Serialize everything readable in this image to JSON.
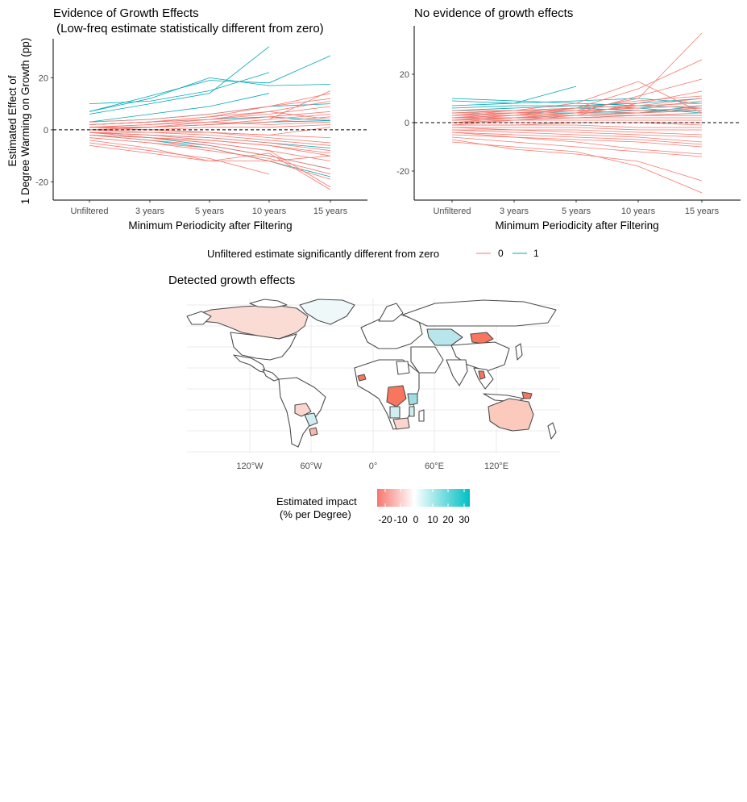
{
  "chart_data": [
    {
      "type": "line",
      "title": "Evidence of Growth Effects",
      "subtitle": " (Low-freq estimate statistically different from zero)",
      "ylabel_line1": "Estimated Effect of",
      "ylabel_line2": "1 Degree Warming on Growth (pp)",
      "xlabel": "Minimum Periodicity after Filtering",
      "categories": [
        "Unfiltered",
        "3 years",
        "5 years",
        "10 years",
        "15 years"
      ],
      "yticks": [
        -20,
        0,
        20
      ],
      "ylim": [
        -27,
        35
      ],
      "reference_line": 0,
      "series_groups": [
        {
          "name": "1",
          "color": "#00a9b5",
          "lines": [
            [
              7,
              12,
              20,
              17,
              17.5
            ],
            [
              10,
              11,
              15,
              22,
              null
            ],
            [
              6,
              10,
              14,
              32,
              null
            ],
            [
              7,
              13,
              19,
              18,
              28.5
            ],
            [
              3,
              6,
              9,
              14,
              null
            ],
            [
              3,
              4,
              6,
              9,
              10
            ],
            [
              2,
              3,
              4,
              5,
              3.5
            ],
            [
              1,
              1,
              2,
              3,
              3.5
            ],
            [
              -1,
              -3,
              -6,
              -10,
              -15
            ],
            [
              -2,
              -4,
              -7,
              -12,
              -18
            ],
            [
              -1,
              -2,
              -3,
              -5,
              -7
            ]
          ]
        },
        {
          "name": "0",
          "color": "#f8766d",
          "lines": [
            [
              3,
              4,
              6,
              9,
              14
            ],
            [
              2,
              3,
              5,
              9,
              12
            ],
            [
              2,
              3,
              4,
              7,
              11
            ],
            [
              1,
              2,
              4,
              6,
              9
            ],
            [
              1,
              2,
              3,
              5,
              7
            ],
            [
              1,
              1,
              2,
              4,
              6
            ],
            [
              2,
              3,
              5,
              7,
              4
            ],
            [
              0,
              1,
              2,
              3,
              5
            ],
            [
              0,
              1,
              2,
              4,
              15
            ],
            [
              1,
              1,
              3,
              2,
              3
            ],
            [
              0,
              0,
              1,
              1,
              2
            ],
            [
              0,
              0,
              -1,
              -2,
              1
            ],
            [
              -1,
              -1,
              -2,
              -4,
              -6
            ],
            [
              -1,
              -2,
              -3,
              -5,
              -8
            ],
            [
              -1,
              -2,
              -4,
              -6,
              -10
            ],
            [
              -2,
              -3,
              -5,
              -8,
              -12
            ],
            [
              -2,
              -4,
              -6,
              -10,
              -15
            ],
            [
              -3,
              -5,
              -8,
              -11,
              -17
            ],
            [
              -3,
              -5,
              -7,
              -12,
              -19
            ],
            [
              -4,
              -7,
              -12,
              -12,
              -10
            ],
            [
              -5,
              -8,
              -11,
              -17,
              null
            ],
            [
              -6,
              -9,
              -12,
              -9,
              -23
            ],
            [
              -1,
              -3,
              -5,
              -8,
              -22
            ],
            [
              0,
              -1,
              -1,
              -2,
              -3
            ],
            [
              1,
              0,
              -1,
              -3,
              -5
            ],
            [
              -2,
              -3,
              -4,
              -6,
              -9
            ]
          ]
        }
      ]
    },
    {
      "type": "line",
      "title": "No evidence of growth effects",
      "xlabel": "Minimum Periodicity after Filtering",
      "categories": [
        "Unfiltered",
        "3 years",
        "5 years",
        "10 years",
        "15 years"
      ],
      "yticks": [
        -20,
        0,
        20
      ],
      "ylim": [
        -32,
        40
      ],
      "reference_line": 0,
      "series_groups": [
        {
          "name": "1",
          "color": "#00a9b5",
          "lines": [
            [
              10,
              9,
              8,
              7,
              6
            ],
            [
              9,
              8,
              9,
              10,
              8
            ],
            [
              7,
              8,
              15,
              null,
              null
            ],
            [
              6,
              7,
              7,
              8,
              10
            ],
            [
              5,
              6,
              7,
              6,
              4
            ],
            [
              4,
              5,
              6,
              5,
              5
            ],
            [
              3,
              4,
              4,
              4,
              7
            ],
            [
              2,
              2,
              3,
              4,
              5
            ],
            [
              1,
              2,
              2,
              3,
              3
            ]
          ]
        },
        {
          "name": "0",
          "color": "#f8766d",
          "lines": [
            [
              5,
              5,
              6,
              7,
              8
            ],
            [
              4,
              4,
              5,
              6,
              7
            ],
            [
              4,
              5,
              5,
              4,
              6
            ],
            [
              3,
              4,
              5,
              6,
              9
            ],
            [
              3,
              3,
              4,
              5,
              6
            ],
            [
              2,
              3,
              3,
              4,
              5
            ],
            [
              2,
              2,
              3,
              3,
              4
            ],
            [
              1,
              2,
              2,
              3,
              3
            ],
            [
              1,
              1,
              2,
              2,
              2
            ],
            [
              0,
              1,
              1,
              1,
              1
            ],
            [
              0,
              0,
              0,
              0,
              0
            ],
            [
              -1,
              -1,
              0,
              0,
              -1
            ],
            [
              -1,
              -1,
              -1,
              -2,
              -2
            ],
            [
              -2,
              -2,
              -2,
              -3,
              -3
            ],
            [
              -2,
              -3,
              -3,
              -4,
              -5
            ],
            [
              -3,
              -3,
              -4,
              -5,
              -6
            ],
            [
              -3,
              -4,
              -5,
              -6,
              -8
            ],
            [
              -4,
              -5,
              -6,
              -7,
              -9
            ],
            [
              -5,
              -6,
              -7,
              -8,
              -10
            ],
            [
              -6,
              -8,
              -10,
              -12,
              -14
            ],
            [
              -7,
              -11,
              -13,
              -16,
              -24
            ],
            [
              -8,
              -10,
              -12,
              -18,
              -29
            ],
            [
              -4,
              -6,
              -8,
              -11,
              -13
            ],
            [
              3,
              5,
              8,
              17,
              4
            ],
            [
              1,
              3,
              5,
              10,
              37
            ],
            [
              2,
              4,
              6,
              14,
              26
            ],
            [
              0,
              2,
              4,
              11,
              18
            ],
            [
              -1,
              1,
              3,
              8,
              13
            ],
            [
              2,
              3,
              6,
              9,
              11
            ],
            [
              1,
              2,
              4,
              7,
              10
            ]
          ]
        }
      ]
    }
  ],
  "legend": {
    "title": "Unfiltered estimate significantly different from zero",
    "items": [
      {
        "label": "0",
        "color": "#f8766d"
      },
      {
        "label": "1",
        "color": "#00a9b5"
      }
    ]
  },
  "map": {
    "title": "Detected growth effects",
    "lon_ticks": [
      "120°W",
      "60°W",
      "0°",
      "60°E",
      "120°E"
    ],
    "colorbar": {
      "title_line1": "Estimated impact",
      "title_line2": "(% per Degree)",
      "ticks": [
        "-20",
        "-10",
        "0",
        "10",
        "20",
        "30"
      ],
      "low_color": "#f8766d",
      "mid_color": "#ffffff",
      "high_color": "#00bfc4"
    }
  }
}
